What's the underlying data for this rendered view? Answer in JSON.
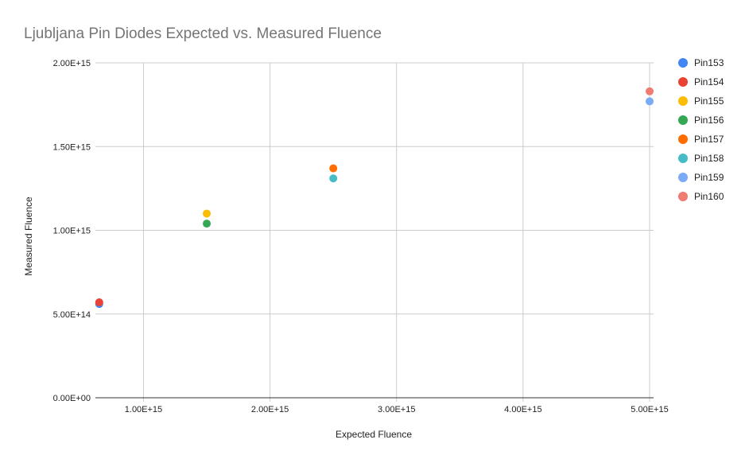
{
  "chart_data": {
    "type": "scatter",
    "title": "Ljubljana Pin Diodes Expected vs. Measured Fluence",
    "xlabel": "Expected Fluence",
    "ylabel": "Measured Fluence",
    "xlim": [
      620000000000000.0,
      5000000000000000.0
    ],
    "ylim": [
      0,
      2000000000000000.0
    ],
    "xticks": [
      1000000000000000.0,
      2000000000000000.0,
      3000000000000000.0,
      4000000000000000.0,
      5000000000000000.0
    ],
    "xtick_labels": [
      "1.00E+15",
      "2.00E+15",
      "3.00E+15",
      "4.00E+15",
      "5.00E+15"
    ],
    "yticks": [
      0,
      500000000000000.0,
      1000000000000000.0,
      1500000000000000.0,
      2000000000000000.0
    ],
    "ytick_labels": [
      "0.00E+00",
      "5.00E+14",
      "1.00E+15",
      "1.50E+15",
      "2.00E+15"
    ],
    "grid": true,
    "legend_position": "right",
    "series": [
      {
        "name": "Pin153",
        "color": "#4285f4",
        "points": [
          [
            650000000000000.0,
            560000000000000.0
          ]
        ]
      },
      {
        "name": "Pin154",
        "color": "#ea4335",
        "points": [
          [
            650000000000000.0,
            570000000000000.0
          ]
        ]
      },
      {
        "name": "Pin155",
        "color": "#fbbc04",
        "points": [
          [
            1500000000000000.0,
            1100000000000000.0
          ]
        ]
      },
      {
        "name": "Pin156",
        "color": "#34a853",
        "points": [
          [
            1500000000000000.0,
            1040000000000000.0
          ]
        ]
      },
      {
        "name": "Pin157",
        "color": "#ff6d01",
        "points": [
          [
            2500000000000000.0,
            1370000000000000.0
          ]
        ]
      },
      {
        "name": "Pin158",
        "color": "#46bdc6",
        "points": [
          [
            2500000000000000.0,
            1310000000000000.0
          ]
        ]
      },
      {
        "name": "Pin159",
        "color": "#7baaf7",
        "points": [
          [
            5000000000000000.0,
            1770000000000000.0
          ]
        ]
      },
      {
        "name": "Pin160",
        "color": "#f07b72",
        "points": [
          [
            5000000000000000.0,
            1830000000000000.0
          ]
        ]
      }
    ]
  }
}
